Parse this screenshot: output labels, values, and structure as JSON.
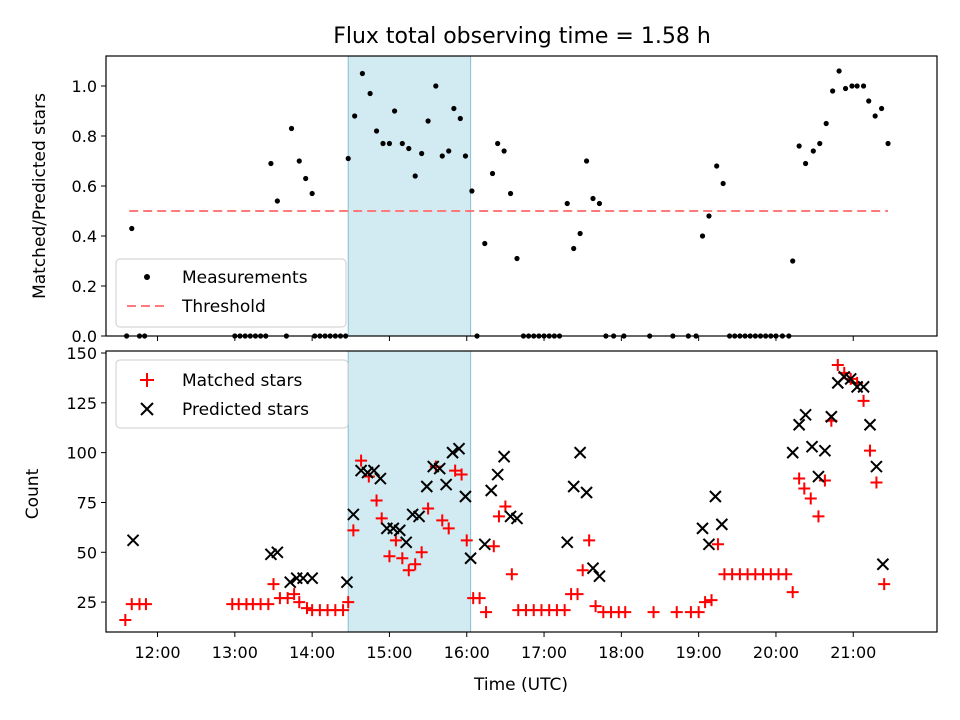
{
  "chart_data": [
    {
      "type": "scatter",
      "title": "Flux total observing time = 1.58 h",
      "xlabel": "",
      "ylabel": "Matched/Predicted stars",
      "xlim": [
        "11:20",
        "22:05"
      ],
      "ylim": [
        0,
        1.12
      ],
      "yticks": [
        "0.0",
        "0.2",
        "0.4",
        "0.6",
        "0.8",
        "1.0"
      ],
      "grid": false,
      "legend_position": "lower-left",
      "highlight_span": [
        "14:28",
        "16:03"
      ],
      "series": [
        {
          "name": "Measurements",
          "marker": "dot",
          "color": "#000000",
          "points": [
            [
              "11:36",
              0
            ],
            [
              "11:40",
              0.43
            ],
            [
              "11:46",
              0
            ],
            [
              "11:50",
              0
            ],
            [
              "13:00",
              0
            ],
            [
              "13:04",
              0
            ],
            [
              "13:08",
              0
            ],
            [
              "13:12",
              0
            ],
            [
              "13:16",
              0
            ],
            [
              "13:20",
              0
            ],
            [
              "13:24",
              0
            ],
            [
              "13:28",
              0.69
            ],
            [
              "13:33",
              0.54
            ],
            [
              "13:40",
              0
            ],
            [
              "13:44",
              0.83
            ],
            [
              "13:50",
              0.7
            ],
            [
              "13:55",
              0.63
            ],
            [
              "14:00",
              0.57
            ],
            [
              "14:02",
              0
            ],
            [
              "14:06",
              0
            ],
            [
              "14:10",
              0
            ],
            [
              "14:14",
              0
            ],
            [
              "14:18",
              0
            ],
            [
              "14:22",
              0
            ],
            [
              "14:26",
              0
            ],
            [
              "14:28",
              0.71
            ],
            [
              "14:33",
              0.88
            ],
            [
              "14:39",
              1.05
            ],
            [
              "14:45",
              0.97
            ],
            [
              "14:50",
              0.82
            ],
            [
              "14:55",
              0.77
            ],
            [
              "15:00",
              0.77
            ],
            [
              "15:04",
              0.9
            ],
            [
              "15:10",
              0.77
            ],
            [
              "15:15",
              0.75
            ],
            [
              "15:20",
              0.64
            ],
            [
              "15:25",
              0.73
            ],
            [
              "15:30",
              0.86
            ],
            [
              "15:36",
              1.0
            ],
            [
              "15:41",
              0.72
            ],
            [
              "15:46",
              0.74
            ],
            [
              "15:50",
              0.91
            ],
            [
              "15:55",
              0.87
            ],
            [
              "15:59",
              0.72
            ],
            [
              "16:04",
              0.58
            ],
            [
              "16:08",
              0
            ],
            [
              "16:14",
              0.37
            ],
            [
              "16:20",
              0.65
            ],
            [
              "16:24",
              0.77
            ],
            [
              "16:29",
              0.74
            ],
            [
              "16:34",
              0.57
            ],
            [
              "16:39",
              0.31
            ],
            [
              "16:44",
              0
            ],
            [
              "16:48",
              0
            ],
            [
              "16:52",
              0
            ],
            [
              "16:56",
              0
            ],
            [
              "17:00",
              0
            ],
            [
              "17:04",
              0
            ],
            [
              "17:08",
              0
            ],
            [
              "17:12",
              0
            ],
            [
              "17:18",
              0.53
            ],
            [
              "17:23",
              0.35
            ],
            [
              "17:28",
              0.41
            ],
            [
              "17:33",
              0.7
            ],
            [
              "17:38",
              0.55
            ],
            [
              "17:43",
              0.53
            ],
            [
              "17:48",
              0
            ],
            [
              "17:54",
              0
            ],
            [
              "18:02",
              0
            ],
            [
              "18:22",
              0
            ],
            [
              "18:40",
              0
            ],
            [
              "18:52",
              0
            ],
            [
              "18:58",
              0
            ],
            [
              "19:03",
              0.4
            ],
            [
              "19:08",
              0.48
            ],
            [
              "19:14",
              0.68
            ],
            [
              "19:19",
              0.61
            ],
            [
              "19:24",
              0
            ],
            [
              "19:28",
              0
            ],
            [
              "19:32",
              0
            ],
            [
              "19:36",
              0
            ],
            [
              "19:40",
              0
            ],
            [
              "19:44",
              0
            ],
            [
              "19:48",
              0
            ],
            [
              "19:52",
              0
            ],
            [
              "19:56",
              0
            ],
            [
              "20:00",
              0
            ],
            [
              "20:05",
              0
            ],
            [
              "20:10",
              0
            ],
            [
              "20:13",
              0.3
            ],
            [
              "20:18",
              0.76
            ],
            [
              "20:23",
              0.69
            ],
            [
              "20:29",
              0.74
            ],
            [
              "20:34",
              0.77
            ],
            [
              "20:39",
              0.85
            ],
            [
              "20:44",
              0.98
            ],
            [
              "20:49",
              1.06
            ],
            [
              "20:54",
              0.99
            ],
            [
              "20:59",
              1.0
            ],
            [
              "21:03",
              1.0
            ],
            [
              "21:08",
              1.0
            ],
            [
              "21:12",
              0.94
            ],
            [
              "21:17",
              0.88
            ],
            [
              "21:22",
              0.91
            ],
            [
              "21:27",
              0.77
            ]
          ]
        },
        {
          "name": "Threshold",
          "marker": "dashed-line",
          "color": "#ff7b7b",
          "points": [
            [
              "11:38",
              0.5
            ],
            [
              "21:27",
              0.5
            ]
          ]
        }
      ]
    },
    {
      "type": "scatter",
      "title": "",
      "xlabel": "Time (UTC)",
      "ylabel": "Count",
      "xlim": [
        "11:20",
        "22:05"
      ],
      "ylim": [
        10,
        151
      ],
      "xticks": [
        "12:00",
        "13:00",
        "14:00",
        "15:00",
        "16:00",
        "17:00",
        "18:00",
        "19:00",
        "20:00",
        "21:00"
      ],
      "yticks": [
        "25",
        "50",
        "75",
        "100",
        "125",
        "150"
      ],
      "grid": false,
      "legend_position": "upper-left",
      "highlight_span": [
        "14:28",
        "16:03"
      ],
      "series": [
        {
          "name": "Matched stars",
          "marker": "plus",
          "color": "#ff0000",
          "points": [
            [
              "11:35",
              16
            ],
            [
              "11:40",
              24
            ],
            [
              "11:46",
              24
            ],
            [
              "11:51",
              24
            ],
            [
              "12:58",
              24
            ],
            [
              "13:03",
              24
            ],
            [
              "13:09",
              24
            ],
            [
              "13:14",
              24
            ],
            [
              "13:20",
              24
            ],
            [
              "13:26",
              24
            ],
            [
              "13:30",
              34
            ],
            [
              "13:35",
              27
            ],
            [
              "13:41",
              27
            ],
            [
              "13:46",
              29
            ],
            [
              "13:50",
              25
            ],
            [
              "13:56",
              22
            ],
            [
              "14:00",
              21
            ],
            [
              "14:06",
              21
            ],
            [
              "14:12",
              21
            ],
            [
              "14:18",
              21
            ],
            [
              "14:24",
              21
            ],
            [
              "14:28",
              25
            ],
            [
              "14:32",
              61
            ],
            [
              "14:38",
              96
            ],
            [
              "14:44",
              88
            ],
            [
              "14:50",
              76
            ],
            [
              "14:54",
              67
            ],
            [
              "15:00",
              48
            ],
            [
              "15:05",
              56
            ],
            [
              "15:10",
              47
            ],
            [
              "15:15",
              41
            ],
            [
              "15:20",
              44
            ],
            [
              "15:25",
              50
            ],
            [
              "15:30",
              72
            ],
            [
              "15:36",
              93
            ],
            [
              "15:41",
              66
            ],
            [
              "15:46",
              62
            ],
            [
              "15:51",
              91
            ],
            [
              "15:56",
              89
            ],
            [
              "16:00",
              56
            ],
            [
              "16:05",
              27
            ],
            [
              "16:10",
              27
            ],
            [
              "16:15",
              20
            ],
            [
              "16:21",
              53
            ],
            [
              "16:25",
              68
            ],
            [
              "16:30",
              73
            ],
            [
              "16:35",
              39
            ],
            [
              "16:40",
              21
            ],
            [
              "16:46",
              21
            ],
            [
              "16:52",
              21
            ],
            [
              "16:58",
              21
            ],
            [
              "17:04",
              21
            ],
            [
              "17:10",
              21
            ],
            [
              "17:16",
              21
            ],
            [
              "17:21",
              29
            ],
            [
              "17:26",
              29
            ],
            [
              "17:30",
              41
            ],
            [
              "17:35",
              56
            ],
            [
              "17:40",
              23
            ],
            [
              "17:46",
              20
            ],
            [
              "17:52",
              20
            ],
            [
              "17:58",
              20
            ],
            [
              "18:03",
              20
            ],
            [
              "18:25",
              20
            ],
            [
              "18:43",
              20
            ],
            [
              "18:54",
              20
            ],
            [
              "19:00",
              20
            ],
            [
              "19:05",
              25
            ],
            [
              "19:10",
              26
            ],
            [
              "19:15",
              54
            ],
            [
              "19:20",
              39
            ],
            [
              "19:26",
              39
            ],
            [
              "19:32",
              39
            ],
            [
              "19:38",
              39
            ],
            [
              "19:44",
              39
            ],
            [
              "19:50",
              39
            ],
            [
              "19:56",
              39
            ],
            [
              "20:02",
              39
            ],
            [
              "20:08",
              39
            ],
            [
              "20:13",
              30
            ],
            [
              "20:18",
              87
            ],
            [
              "20:22",
              82
            ],
            [
              "20:27",
              77
            ],
            [
              "20:33",
              68
            ],
            [
              "20:38",
              86
            ],
            [
              "20:43",
              116
            ],
            [
              "20:48",
              144
            ],
            [
              "20:53",
              140
            ],
            [
              "20:58",
              137
            ],
            [
              "21:03",
              135
            ],
            [
              "21:08",
              126
            ],
            [
              "21:13",
              101
            ],
            [
              "21:18",
              85
            ],
            [
              "21:24",
              34
            ]
          ]
        },
        {
          "name": "Predicted stars",
          "marker": "x",
          "color": "#000000",
          "points": [
            [
              "11:41",
              56
            ],
            [
              "13:28",
              49
            ],
            [
              "13:33",
              50
            ],
            [
              "13:43",
              35
            ],
            [
              "13:48",
              37
            ],
            [
              "13:53",
              37
            ],
            [
              "14:00",
              37
            ],
            [
              "14:27",
              35
            ],
            [
              "14:32",
              69
            ],
            [
              "14:38",
              91
            ],
            [
              "14:43",
              90
            ],
            [
              "14:48",
              91
            ],
            [
              "14:53",
              87
            ],
            [
              "14:58",
              62
            ],
            [
              "15:03",
              62
            ],
            [
              "15:08",
              61
            ],
            [
              "15:13",
              55
            ],
            [
              "15:18",
              69
            ],
            [
              "15:23",
              68
            ],
            [
              "15:29",
              83
            ],
            [
              "15:34",
              93
            ],
            [
              "15:39",
              92
            ],
            [
              "15:44",
              84
            ],
            [
              "15:49",
              100
            ],
            [
              "15:54",
              102
            ],
            [
              "15:59",
              78
            ],
            [
              "16:03",
              47
            ],
            [
              "16:14",
              54
            ],
            [
              "16:19",
              81
            ],
            [
              "16:24",
              89
            ],
            [
              "16:29",
              98
            ],
            [
              "16:34",
              68
            ],
            [
              "16:39",
              67
            ],
            [
              "17:18",
              55
            ],
            [
              "17:23",
              83
            ],
            [
              "17:28",
              100
            ],
            [
              "17:33",
              80
            ],
            [
              "17:38",
              42
            ],
            [
              "17:43",
              38
            ],
            [
              "19:03",
              62
            ],
            [
              "19:08",
              54
            ],
            [
              "19:13",
              78
            ],
            [
              "19:18",
              64
            ],
            [
              "20:13",
              100
            ],
            [
              "20:18",
              114
            ],
            [
              "20:23",
              119
            ],
            [
              "20:28",
              103
            ],
            [
              "20:33",
              88
            ],
            [
              "20:38",
              101
            ],
            [
              "20:43",
              118
            ],
            [
              "20:48",
              135
            ],
            [
              "20:53",
              138
            ],
            [
              "20:58",
              137
            ],
            [
              "21:03",
              133
            ],
            [
              "21:08",
              133
            ],
            [
              "21:13",
              114
            ],
            [
              "21:18",
              93
            ],
            [
              "21:23",
              44
            ]
          ]
        }
      ]
    }
  ]
}
